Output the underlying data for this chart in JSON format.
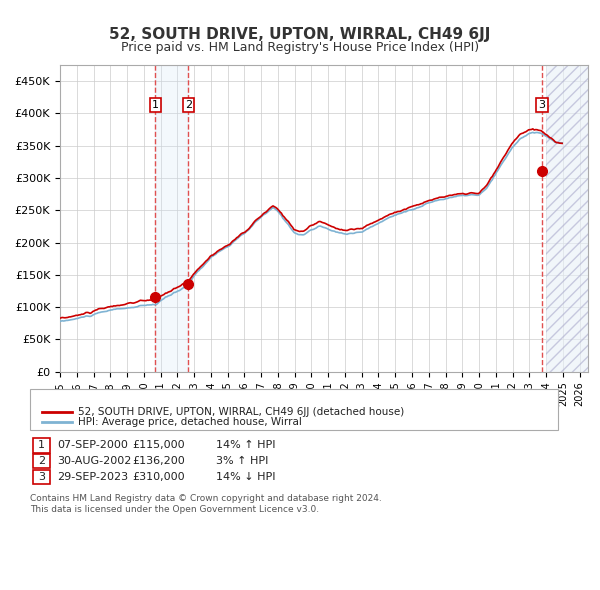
{
  "title": "52, SOUTH DRIVE, UPTON, WIRRAL, CH49 6JJ",
  "subtitle": "Price paid vs. HM Land Registry's House Price Index (HPI)",
  "ylabel": "",
  "ylim": [
    0,
    475000
  ],
  "yticks": [
    0,
    50000,
    100000,
    150000,
    200000,
    250000,
    300000,
    350000,
    400000,
    450000
  ],
  "ytick_labels": [
    "£0",
    "£50K",
    "£100K",
    "£150K",
    "£200K",
    "£250K",
    "£300K",
    "£350K",
    "£400K",
    "£450K"
  ],
  "xlim_start": 1995.0,
  "xlim_end": 2026.5,
  "xtick_years": [
    1995,
    1996,
    1997,
    1998,
    1999,
    2000,
    2001,
    2002,
    2003,
    2004,
    2005,
    2006,
    2007,
    2008,
    2009,
    2010,
    2011,
    2012,
    2013,
    2014,
    2015,
    2016,
    2017,
    2018,
    2019,
    2020,
    2021,
    2022,
    2023,
    2024,
    2025,
    2026
  ],
  "sale_dates_dec": [
    2000.689,
    2002.662,
    2023.747
  ],
  "sale_prices": [
    115000,
    136200,
    310000
  ],
  "sale_labels": [
    "1",
    "2",
    "3"
  ],
  "vline_color": "#e05050",
  "sale_dot_color": "#cc0000",
  "highlight_fill_color": "#d0e4f7",
  "hatch_color": "#c8d8e8",
  "legend_label_red": "52, SOUTH DRIVE, UPTON, WIRRAL, CH49 6JJ (detached house)",
  "legend_label_blue": "HPI: Average price, detached house, Wirral",
  "table_rows": [
    [
      "1",
      "07-SEP-2000",
      "£115,000",
      "14% ↑ HPI"
    ],
    [
      "2",
      "30-AUG-2002",
      "£136,200",
      "3% ↑ HPI"
    ],
    [
      "3",
      "29-SEP-2023",
      "£310,000",
      "14% ↓ HPI"
    ]
  ],
  "footer": "Contains HM Land Registry data © Crown copyright and database right 2024.\nThis data is licensed under the Open Government Licence v3.0.",
  "red_line_color": "#cc0000",
  "blue_line_color": "#7fb3d3",
  "bg_color": "#ffffff",
  "grid_color": "#cccccc",
  "hpi_base_1995": 78000,
  "hpi_base_2000": 101000
}
